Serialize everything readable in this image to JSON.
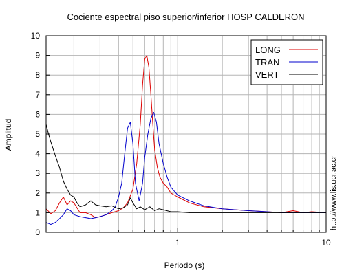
{
  "chart_data": {
    "type": "line",
    "title": "Cociente espectral piso superior/inferior  HOSP CALDERON",
    "xlabel": "Periodo (s)",
    "ylabel": "Amplitud",
    "xscale": "log",
    "xlim": [
      0.13,
      10
    ],
    "ylim": [
      0,
      10
    ],
    "x_tick_labels": [
      {
        "value": 1,
        "label": "1"
      },
      {
        "value": 10,
        "label": "10"
      }
    ],
    "y_ticks": [
      0,
      1,
      2,
      3,
      4,
      5,
      6,
      7,
      8,
      9,
      10
    ],
    "grid": true,
    "legend_position": "top-right",
    "credit": "http://www.lis.ucr.ac.cr",
    "series": [
      {
        "name": "LONG",
        "color": "#dd0000",
        "x": [
          0.13,
          0.14,
          0.15,
          0.16,
          0.17,
          0.18,
          0.19,
          0.2,
          0.22,
          0.24,
          0.26,
          0.28,
          0.3,
          0.33,
          0.36,
          0.4,
          0.43,
          0.46,
          0.5,
          0.53,
          0.56,
          0.58,
          0.6,
          0.62,
          0.64,
          0.66,
          0.68,
          0.7,
          0.73,
          0.76,
          0.8,
          0.85,
          0.9,
          1.0,
          1.2,
          1.5,
          2.0,
          3.0,
          4.0,
          5.0,
          6.0,
          7.0,
          8.0,
          10.0
        ],
        "y": [
          1.2,
          0.95,
          1.1,
          1.5,
          1.8,
          1.4,
          1.6,
          1.5,
          1.0,
          1.0,
          0.9,
          0.75,
          0.8,
          0.9,
          1.0,
          1.1,
          1.25,
          1.5,
          2.2,
          3.5,
          5.5,
          7.5,
          8.8,
          9.0,
          8.4,
          7.0,
          5.5,
          4.2,
          3.3,
          2.8,
          2.5,
          2.3,
          2.0,
          1.8,
          1.5,
          1.3,
          1.2,
          1.1,
          1.05,
          1.0,
          1.1,
          1.0,
          1.05,
          1.0
        ]
      },
      {
        "name": "TRAN",
        "color": "#0000cc",
        "x": [
          0.13,
          0.14,
          0.15,
          0.16,
          0.17,
          0.18,
          0.19,
          0.2,
          0.22,
          0.24,
          0.26,
          0.28,
          0.3,
          0.33,
          0.36,
          0.38,
          0.4,
          0.42,
          0.44,
          0.46,
          0.48,
          0.5,
          0.52,
          0.55,
          0.58,
          0.6,
          0.63,
          0.66,
          0.69,
          0.72,
          0.75,
          0.8,
          0.85,
          0.9,
          1.0,
          1.2,
          1.5,
          2.0,
          3.0,
          4.0,
          5.0,
          6.0,
          7.0,
          8.0,
          10.0
        ],
        "y": [
          0.5,
          0.4,
          0.5,
          0.7,
          0.9,
          1.2,
          1.1,
          0.9,
          0.8,
          0.75,
          0.7,
          0.75,
          0.8,
          0.9,
          1.1,
          1.3,
          1.8,
          2.5,
          4.0,
          5.3,
          5.6,
          4.5,
          2.5,
          1.6,
          2.5,
          3.8,
          5.0,
          5.8,
          6.1,
          5.6,
          4.5,
          3.5,
          2.8,
          2.3,
          1.9,
          1.6,
          1.35,
          1.2,
          1.1,
          1.05,
          1.0,
          1.0,
          1.0,
          1.0,
          1.0
        ]
      },
      {
        "name": "VERT",
        "color": "#000000",
        "x": [
          0.13,
          0.135,
          0.14,
          0.15,
          0.16,
          0.17,
          0.18,
          0.19,
          0.2,
          0.21,
          0.22,
          0.24,
          0.26,
          0.28,
          0.3,
          0.33,
          0.36,
          0.4,
          0.43,
          0.46,
          0.48,
          0.5,
          0.53,
          0.56,
          0.6,
          0.65,
          0.7,
          0.75,
          0.8,
          0.9,
          1.0,
          1.2,
          1.5,
          2.0,
          3.0,
          5.0,
          7.0,
          10.0
        ],
        "y": [
          5.5,
          5.0,
          4.6,
          3.9,
          3.3,
          2.6,
          2.2,
          1.9,
          1.8,
          1.5,
          1.3,
          1.4,
          1.6,
          1.4,
          1.35,
          1.3,
          1.35,
          1.2,
          1.25,
          1.4,
          1.75,
          1.5,
          1.2,
          1.3,
          1.15,
          1.3,
          1.1,
          1.2,
          1.15,
          1.05,
          1.05,
          1.0,
          1.0,
          1.0,
          1.0,
          1.0,
          1.0,
          1.0
        ]
      }
    ]
  }
}
